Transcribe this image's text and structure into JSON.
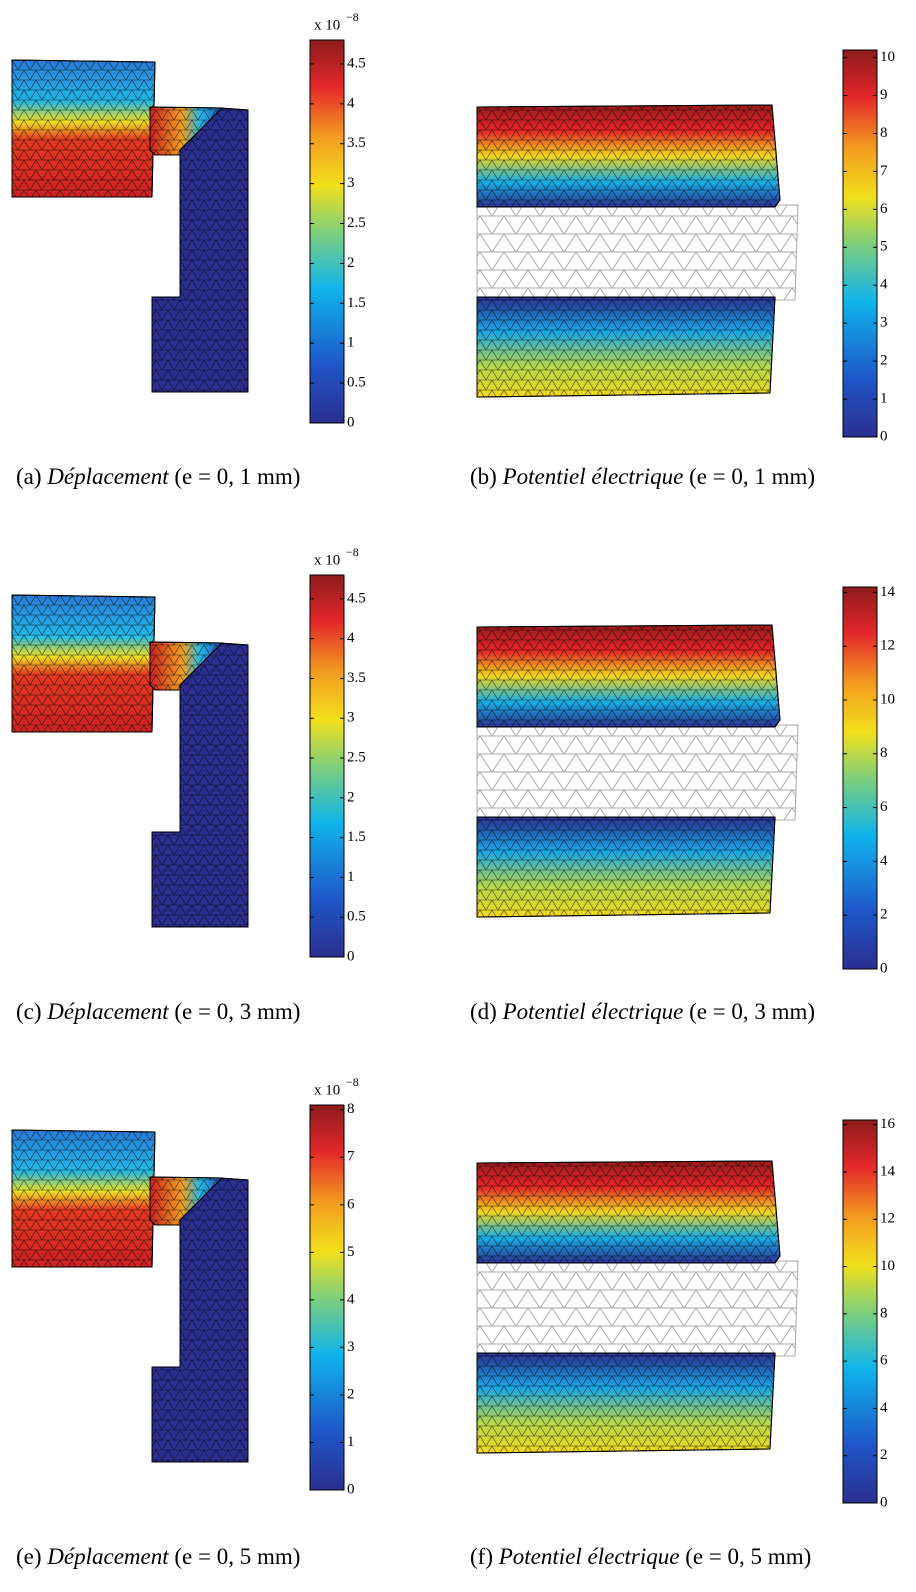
{
  "panels": [
    {
      "label": "(a)",
      "title": "Déplacement",
      "parameter": "(e = 0, 1 mm)",
      "colorbar": {
        "lim": [
          0,
          4.8
        ],
        "ticks": [
          0,
          0.5,
          1,
          1.5,
          2,
          2.5,
          3,
          3.5,
          4,
          4.5
        ],
        "exponent_base": "x 10",
        "exponent_power": "−8"
      }
    },
    {
      "label": "(b)",
      "title": "Potentiel électrique",
      "parameter": "(e = 0, 1 mm)",
      "colorbar": {
        "lim": [
          0,
          10.2
        ],
        "ticks": [
          0,
          1,
          2,
          3,
          4,
          5,
          6,
          7,
          8,
          9,
          10
        ]
      }
    },
    {
      "label": "(c)",
      "title": "Déplacement",
      "parameter": "(e = 0, 3 mm)",
      "colorbar": {
        "lim": [
          0,
          4.8
        ],
        "ticks": [
          0,
          0.5,
          1,
          1.5,
          2,
          2.5,
          3,
          3.5,
          4,
          4.5
        ],
        "exponent_base": "x 10",
        "exponent_power": "−8"
      }
    },
    {
      "label": "(d)",
      "title": "Potentiel électrique",
      "parameter": "(e = 0, 3 mm)",
      "colorbar": {
        "lim": [
          0,
          14.2
        ],
        "ticks": [
          0,
          2,
          4,
          6,
          8,
          10,
          12,
          14
        ]
      }
    },
    {
      "label": "(e)",
      "title": "Déplacement",
      "parameter": "(e = 0, 5 mm)",
      "colorbar": {
        "lim": [
          0,
          8.1
        ],
        "ticks": [
          0,
          1,
          2,
          3,
          4,
          5,
          6,
          7,
          8
        ],
        "exponent_base": "x 10",
        "exponent_power": "−8"
      }
    },
    {
      "label": "(f)",
      "title": "Potentiel électrique",
      "parameter": "(e = 0, 5 mm)",
      "colorbar": {
        "lim": [
          0,
          16.2
        ],
        "ticks": [
          0,
          2,
          4,
          6,
          8,
          10,
          12,
          14,
          16
        ]
      }
    }
  ]
}
